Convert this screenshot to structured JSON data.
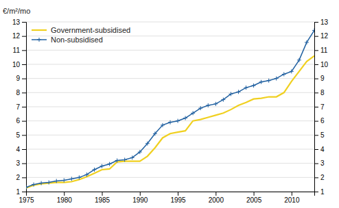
{
  "chart_data": {
    "type": "line",
    "ylabel": "€/m²/mo",
    "x": [
      1975,
      1976,
      1977,
      1978,
      1979,
      1980,
      1981,
      1982,
      1983,
      1984,
      1985,
      1986,
      1987,
      1988,
      1989,
      1990,
      1991,
      1992,
      1993,
      1994,
      1995,
      1996,
      1997,
      1998,
      1999,
      2000,
      2001,
      2002,
      2003,
      2004,
      2005,
      2006,
      2007,
      2008,
      2009,
      2010,
      2011,
      2012,
      2013
    ],
    "series": [
      {
        "name": "Government-subsidised",
        "color": "#f0d020",
        "values": [
          1.25,
          1.45,
          1.55,
          1.6,
          1.65,
          1.65,
          1.7,
          1.85,
          2.05,
          2.3,
          2.55,
          2.6,
          3.1,
          3.15,
          3.15,
          3.15,
          3.5,
          4.1,
          4.8,
          5.1,
          5.2,
          5.3,
          6.0,
          6.1,
          6.25,
          6.4,
          6.55,
          6.8,
          7.1,
          7.3,
          7.55,
          7.6,
          7.7,
          7.7,
          8.0,
          8.8,
          9.5,
          10.2,
          10.6
        ]
      },
      {
        "name": "Non-subsidised",
        "color": "#2060a0",
        "marker": "plus",
        "values": [
          1.3,
          1.5,
          1.6,
          1.65,
          1.75,
          1.8,
          1.9,
          2.0,
          2.2,
          2.55,
          2.8,
          2.95,
          3.2,
          3.25,
          3.4,
          3.8,
          4.4,
          5.1,
          5.7,
          5.9,
          6.0,
          6.2,
          6.55,
          6.9,
          7.1,
          7.2,
          7.5,
          7.9,
          8.05,
          8.35,
          8.5,
          8.75,
          8.85,
          9.0,
          9.3,
          9.5,
          10.3,
          11.55,
          12.4
        ]
      }
    ],
    "xlim": [
      1975,
      2013
    ],
    "xticks": [
      1975,
      1980,
      1985,
      1990,
      1995,
      2000,
      2005,
      2010
    ],
    "ylim": [
      1,
      13
    ],
    "yticks": [
      1,
      2,
      3,
      4,
      5,
      6,
      7,
      8,
      9,
      10,
      11,
      12,
      13
    ],
    "y2lim": [
      1,
      13
    ],
    "y2ticks": [
      1,
      2,
      3,
      4,
      5,
      6,
      7,
      8,
      9,
      10,
      11,
      12,
      13
    ],
    "grid": "y",
    "legend": "upper left"
  }
}
